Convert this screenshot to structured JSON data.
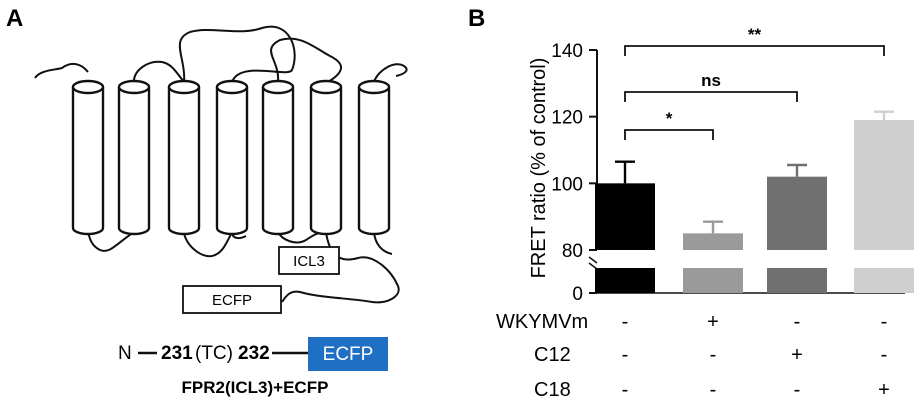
{
  "panel_a": {
    "letter": "A",
    "icl3_label": "ICL3",
    "ecfp_label": "ECFP",
    "construct": {
      "n": "N",
      "start": "231",
      "middle": "(TC)",
      "end": "232",
      "tag": "ECFP",
      "tag_color": "#1f6fc5"
    },
    "title": "FPR2(ICL3)+ECFP"
  },
  "panel_b": {
    "letter": "B",
    "conditions": [
      {
        "name": "WKYMVm",
        "values": [
          "-",
          "+",
          "-",
          "-"
        ]
      },
      {
        "name": "C12",
        "values": [
          "-",
          "-",
          "+",
          "-"
        ]
      },
      {
        "name": "C18",
        "values": [
          "-",
          "-",
          "-",
          "+"
        ]
      }
    ],
    "significance": [
      {
        "label": "*",
        "from": 0,
        "to": 1
      },
      {
        "label": "ns",
        "from": 0,
        "to": 2
      },
      {
        "label": "**",
        "from": 0,
        "to": 3
      }
    ]
  },
  "chart_data": {
    "type": "bar",
    "categories": [
      "1",
      "2",
      "3",
      "4"
    ],
    "values": [
      100,
      85,
      102,
      119
    ],
    "errors": [
      6.5,
      3.5,
      3.5,
      2.5
    ],
    "colors": [
      "#000000",
      "#9a9a9a",
      "#707070",
      "#cfcfcf"
    ],
    "ylabel": "FRET ratio (% of control)",
    "yticks": [
      0,
      80,
      100,
      120,
      140
    ],
    "ylim_upper": [
      80,
      140
    ],
    "ylim_lower": [
      0,
      10
    ],
    "axis_break": true,
    "grid": false
  }
}
